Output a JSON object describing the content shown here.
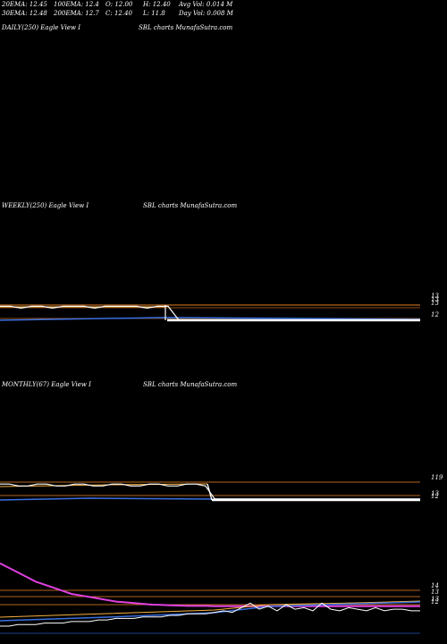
{
  "header": {
    "stats": [
      {
        "id": "ema20",
        "text": "20EMA: 12.45"
      },
      {
        "id": "ema100",
        "text": "100EMA: 12.4"
      },
      {
        "id": "open",
        "text": "O: 12.00"
      },
      {
        "id": "high",
        "text": "H: 12.40"
      },
      {
        "id": "avgvol",
        "text": "Avg Vol: 0.014  M"
      },
      {
        "id": "ema30",
        "text": "30EMA: 12.48"
      },
      {
        "id": "ema200",
        "text": "200EMA: 12.7"
      },
      {
        "id": "close",
        "text": "C: 12.40"
      },
      {
        "id": "low",
        "text": "L: 11.8"
      },
      {
        "id": "dayvol",
        "text": "Day Vol: 0.008  M"
      }
    ]
  },
  "panels": {
    "daily": {
      "label": "DAILY(250) Eagle   View  I",
      "source": "SBL charts MunafaSutra.com"
    },
    "weekly": {
      "label": "WEEKLY(250) Eagle   View  I",
      "source": "SBL charts MunafaSutra.com"
    },
    "monthly": {
      "label": "MONTHLY(67) Eagle   View  I",
      "source": "SBL charts MunafaSutra.com"
    }
  },
  "colors": {
    "background": "#000000",
    "price": "#ffffff",
    "ema_short": "#f5b041",
    "ema_long": "#3b6fe0",
    "ema_magenta": "#e040e0",
    "level_line": "#b5651d"
  },
  "chart_data": [
    {
      "type": "line",
      "panel": "weekly",
      "yticks": [
        "13",
        "13",
        "13",
        "12"
      ],
      "series": [
        {
          "values": [
            13.1,
            13.1,
            13.0,
            13.1,
            13.1,
            13.0,
            13.1,
            13.1,
            13.1,
            13.0,
            13.1,
            13.1,
            13.1,
            13.1,
            13.0,
            13.1,
            13.1,
            12.4,
            12.4,
            12.4,
            12.4,
            12.4,
            12.4,
            12.4,
            12.4,
            12.4,
            12.4,
            12.4,
            12.4,
            12.4,
            12.4,
            12.4,
            12.4,
            12.4,
            12.4,
            12.4,
            12.4,
            12.4,
            12.4,
            12.4,
            12.4
          ]
        }
      ]
    },
    {
      "type": "line",
      "panel": "monthly",
      "yticks": [
        "119",
        "13",
        "12"
      ],
      "series": [
        {
          "values": [
            13.2,
            13.2,
            13.1,
            13.1,
            13.2,
            13.2,
            13.1,
            13.1,
            13.2,
            13.2,
            13.1,
            13.1,
            13.2,
            13.2,
            13.1,
            13.1,
            13.2,
            13.2,
            13.1,
            13.1,
            13.2,
            13.2,
            13.1,
            12.4,
            12.4,
            12.4,
            12.4,
            12.4,
            12.4,
            12.4,
            12.4,
            12.4,
            12.4,
            12.4,
            12.4,
            12.4,
            12.4,
            12.4,
            12.4,
            12.4,
            12.4,
            12.4,
            12.4,
            12.4,
            12.4,
            12.4
          ]
        }
      ]
    },
    {
      "type": "line",
      "panel": "daily-bottom",
      "yticks": [
        "14",
        "13",
        "13",
        "12"
      ],
      "series": [
        {
          "values": [
            11.4,
            11.4,
            11.5,
            11.5,
            11.5,
            11.6,
            11.6,
            11.6,
            11.7,
            11.7,
            11.7,
            11.8,
            11.8,
            11.9,
            11.9,
            11.9,
            12.0,
            12.0,
            12.0,
            12.1,
            12.1,
            12.2,
            12.2,
            12.2,
            12.3,
            12.4,
            12.3,
            12.6,
            12.9,
            12.5,
            12.7,
            12.4,
            12.8,
            12.5,
            12.6,
            12.4,
            12.9,
            12.5,
            12.4,
            12.6,
            12.5,
            12.4,
            12.6,
            12.4,
            12.5,
            12.5,
            12.4,
            12.4
          ]
        },
        {
          "values": [
            15.5,
            15.2,
            14.9,
            14.6,
            14.3,
            14.1,
            13.9,
            13.7,
            13.5,
            13.4,
            13.3,
            13.2,
            13.1,
            13.0,
            12.95,
            12.9,
            12.85,
            12.8,
            12.78,
            12.76,
            12.74,
            12.72,
            12.72,
            12.72,
            12.7,
            12.7,
            12.7,
            12.7,
            12.7,
            12.7,
            12.7,
            12.7,
            12.7,
            12.7,
            12.7,
            12.7,
            12.7,
            12.7,
            12.7,
            12.7,
            12.7,
            12.7,
            12.7,
            12.7,
            12.7,
            12.7,
            12.7,
            12.7
          ]
        }
      ]
    }
  ]
}
